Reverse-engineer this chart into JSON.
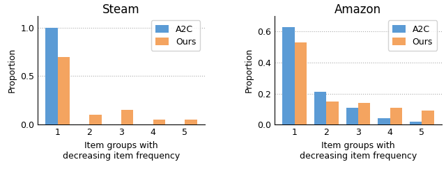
{
  "steam": {
    "title": "Steam",
    "a2c": [
      1.0,
      0.0,
      0.0,
      0.0,
      0.0
    ],
    "ours": [
      0.7,
      0.1,
      0.15,
      0.055,
      0.05
    ],
    "ylim": [
      0,
      1.12
    ],
    "yticks": [
      0.0,
      0.5,
      1.0
    ]
  },
  "amazon": {
    "title": "Amazon",
    "a2c": [
      0.63,
      0.21,
      0.11,
      0.04,
      0.02
    ],
    "ours": [
      0.53,
      0.15,
      0.14,
      0.11,
      0.09
    ],
    "ylim": [
      0,
      0.7
    ],
    "yticks": [
      0.0,
      0.2,
      0.4,
      0.6
    ]
  },
  "categories": [
    1,
    2,
    3,
    4,
    5
  ],
  "color_a2c": "#5b9bd5",
  "color_ours": "#f4a460",
  "bar_width": 0.38,
  "xlabel_line1": "Item groups with",
  "xlabel_line2": "decreasing item frequency",
  "ylabel": "Proportion",
  "legend_labels": [
    "A2C",
    "Ours"
  ],
  "grid_color": "#aaaaaa",
  "grid_linestyle": ":",
  "title_fontsize": 12,
  "label_fontsize": 9,
  "tick_fontsize": 9,
  "legend_fontsize": 9
}
